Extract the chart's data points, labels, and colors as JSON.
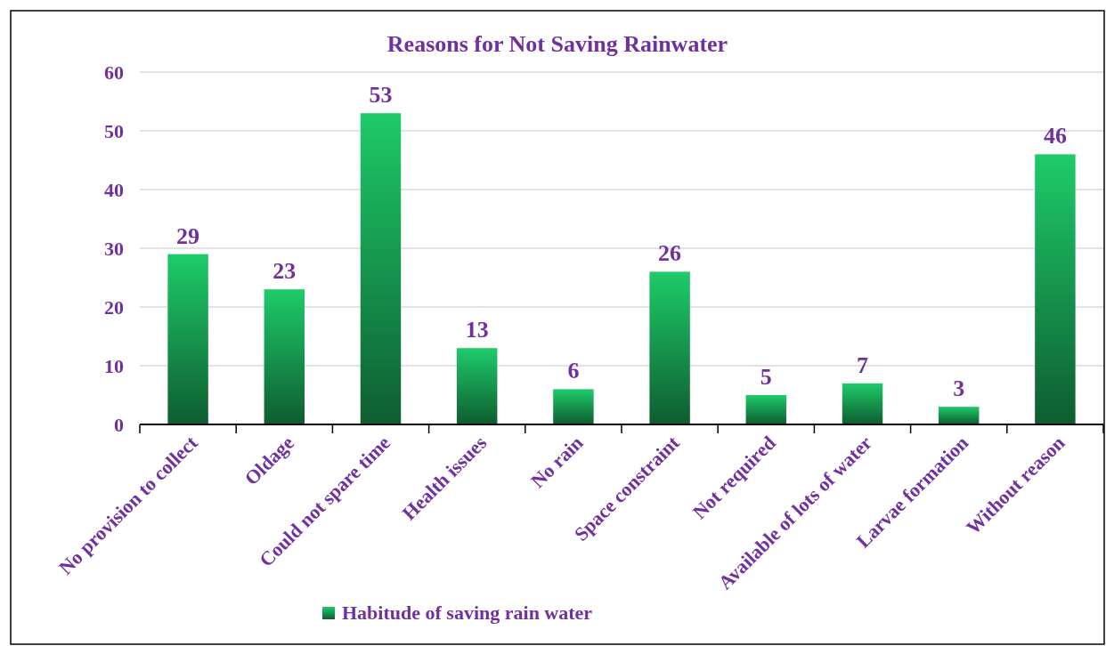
{
  "chart_data": {
    "type": "bar",
    "title": "Reasons for Not Saving Rainwater",
    "categories": [
      "No provision to collect",
      "Oldage",
      "Could not spare time",
      "Health issues",
      "No rain",
      "Space constraint",
      "Not required",
      "Available of lots of water",
      "Larvae formation",
      "Without reason"
    ],
    "series": [
      {
        "name": "Habitude of saving rain water",
        "color": "#1ecb6a",
        "values": [
          29,
          23,
          53,
          13,
          6,
          26,
          5,
          7,
          3,
          46
        ]
      }
    ],
    "ylim": [
      0,
      60
    ],
    "yticks": [
      0,
      10,
      20,
      30,
      40,
      50,
      60
    ],
    "grid": "y",
    "legend": "bottom",
    "data_labels": true
  }
}
